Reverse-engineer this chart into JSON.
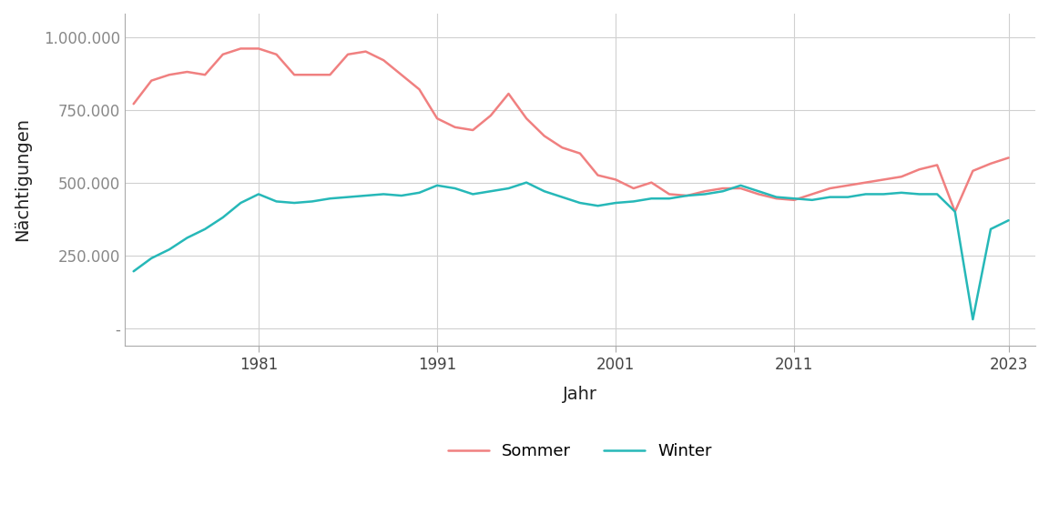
{
  "xlabel": "Jahr",
  "ylabel": "Nächtigungen",
  "sommer_color": "#F08080",
  "winter_color": "#26B8B8",
  "background_color": "#ffffff",
  "grid_color": "#d0d0d0",
  "ylim": [
    -60000,
    1080000
  ],
  "yticks": [
    0,
    250000,
    500000,
    750000,
    1000000
  ],
  "ytick_labels": [
    "-",
    "250.000",
    "500.000",
    "750.000",
    "1.000.000"
  ],
  "xticks": [
    1981,
    1991,
    2001,
    2011,
    2023
  ],
  "xlim_left": 1973.5,
  "xlim_right": 2024.5,
  "years": [
    1974,
    1975,
    1976,
    1977,
    1978,
    1979,
    1980,
    1981,
    1982,
    1983,
    1984,
    1985,
    1986,
    1987,
    1988,
    1989,
    1990,
    1991,
    1992,
    1993,
    1994,
    1995,
    1996,
    1997,
    1998,
    1999,
    2000,
    2001,
    2002,
    2003,
    2004,
    2005,
    2006,
    2007,
    2008,
    2009,
    2010,
    2011,
    2012,
    2013,
    2014,
    2015,
    2016,
    2017,
    2018,
    2019,
    2020,
    2021,
    2022,
    2023
  ],
  "sommer": [
    770000,
    850000,
    870000,
    880000,
    870000,
    940000,
    960000,
    960000,
    940000,
    870000,
    870000,
    870000,
    940000,
    950000,
    920000,
    870000,
    820000,
    720000,
    690000,
    680000,
    730000,
    805000,
    720000,
    660000,
    620000,
    600000,
    525000,
    510000,
    480000,
    500000,
    460000,
    455000,
    470000,
    480000,
    480000,
    460000,
    445000,
    440000,
    460000,
    480000,
    490000,
    500000,
    510000,
    520000,
    545000,
    560000,
    400000,
    540000,
    565000,
    585000
  ],
  "winter": [
    195000,
    240000,
    270000,
    310000,
    340000,
    380000,
    430000,
    460000,
    435000,
    430000,
    435000,
    445000,
    450000,
    455000,
    460000,
    455000,
    465000,
    490000,
    480000,
    460000,
    470000,
    480000,
    500000,
    470000,
    450000,
    430000,
    420000,
    430000,
    435000,
    445000,
    445000,
    455000,
    460000,
    470000,
    490000,
    470000,
    450000,
    445000,
    440000,
    450000,
    450000,
    460000,
    460000,
    465000,
    460000,
    460000,
    400000,
    30000,
    340000,
    370000
  ]
}
